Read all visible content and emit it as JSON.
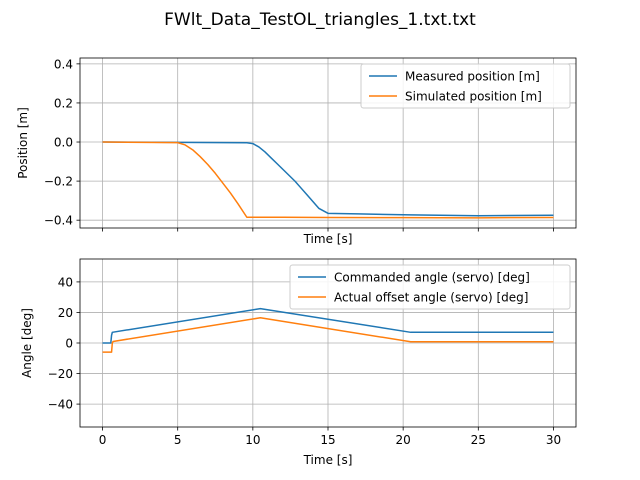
{
  "figure": {
    "title": "FWlt_Data_TestOL_triangles_1.txt.txt"
  },
  "chart_data": [
    {
      "type": "line",
      "xlabel": "Time [s]",
      "ylabel": "Position [m]",
      "xlim": [
        -1.5,
        31.5
      ],
      "ylim": [
        -0.44,
        0.43
      ],
      "xticks": [
        0,
        5,
        10,
        15,
        20,
        25,
        30
      ],
      "yticks": [
        -0.4,
        -0.2,
        0.0,
        0.2,
        0.4
      ],
      "yticklabels": [
        "−0.4",
        "−0.2",
        "0.0",
        "0.2",
        "0.4"
      ],
      "show_xticklabels": false,
      "grid": true,
      "legend": "top-right",
      "series": [
        {
          "name": "Measured position [m]",
          "color": "#1f77b4",
          "x": [
            0,
            5,
            9.6,
            10.0,
            10.4,
            10.8,
            11.2,
            11.6,
            12.0,
            12.4,
            12.8,
            13.2,
            13.6,
            14.0,
            14.4,
            15.0,
            17.0,
            20.5,
            25.0,
            30.0
          ],
          "y": [
            0.0,
            -0.002,
            -0.004,
            -0.008,
            -0.025,
            -0.05,
            -0.08,
            -0.11,
            -0.14,
            -0.17,
            -0.2,
            -0.235,
            -0.27,
            -0.305,
            -0.34,
            -0.365,
            -0.368,
            -0.373,
            -0.377,
            -0.375
          ]
        },
        {
          "name": "Simulated position [m]",
          "color": "#ff7f0e",
          "x": [
            0,
            5,
            5.5,
            6.0,
            6.5,
            7.0,
            7.5,
            8.0,
            8.5,
            9.0,
            9.6,
            12,
            15,
            20,
            25,
            30
          ],
          "y": [
            0.0,
            -0.003,
            -0.015,
            -0.04,
            -0.075,
            -0.115,
            -0.16,
            -0.21,
            -0.26,
            -0.315,
            -0.385,
            -0.385,
            -0.386,
            -0.387,
            -0.388,
            -0.386
          ]
        }
      ]
    },
    {
      "type": "line",
      "xlabel": "Time [s]",
      "ylabel": "Angle [deg]",
      "xlim": [
        -1.5,
        31.5
      ],
      "ylim": [
        -55,
        55
      ],
      "xticks": [
        0,
        5,
        10,
        15,
        20,
        25,
        30
      ],
      "yticks": [
        -40,
        -20,
        0,
        20,
        40
      ],
      "yticklabels": [
        "−40",
        "−20",
        "0",
        "20",
        "40"
      ],
      "show_xticklabels": true,
      "grid": true,
      "legend": "top-right",
      "series": [
        {
          "name": "Commanded angle (servo) [deg]",
          "color": "#1f77b4",
          "x": [
            0,
            0.55,
            0.6,
            0.65,
            10.5,
            20.5,
            30
          ],
          "y": [
            0,
            0,
            5,
            7,
            22.5,
            7,
            7
          ]
        },
        {
          "name": "Actual offset angle (servo) [deg]",
          "color": "#ff7f0e",
          "x": [
            0,
            0.6,
            0.65,
            0.7,
            10.5,
            20.5,
            30
          ],
          "y": [
            -6,
            -6,
            0,
            1,
            16.5,
            0.8,
            0.8
          ]
        }
      ]
    }
  ]
}
